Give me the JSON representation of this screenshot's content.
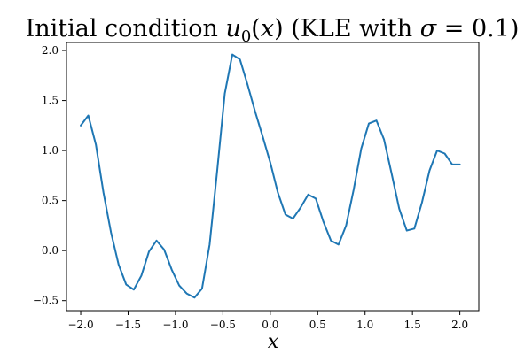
{
  "chart_data": {
    "type": "line",
    "title": {
      "prefix": "Initial condition ",
      "u": "u",
      "sub0": "0",
      "openParen": "(",
      "x": "x",
      "closeParen": ")",
      "middle": " (KLE with ",
      "sigma": "σ",
      "equals": " = ",
      "value": "0.1",
      "suffix": ")"
    },
    "xlabel": "x",
    "ylabel": "",
    "xlim": [
      -2.15,
      2.2
    ],
    "ylim": [
      -0.6,
      2.08
    ],
    "xticks": [
      -2.0,
      -1.5,
      -1.0,
      -0.5,
      0.0,
      0.5,
      1.0,
      1.5,
      2.0
    ],
    "xtick_labels": [
      "−2.0",
      "−1.5",
      "−1.0",
      "−0.5",
      "0.0",
      "0.5",
      "1.0",
      "1.5",
      "2.0"
    ],
    "yticks": [
      -0.5,
      0.0,
      0.5,
      1.0,
      1.5,
      2.0
    ],
    "ytick_labels": [
      "−0.5",
      "0.0",
      "0.5",
      "1.0",
      "1.5",
      "2.0"
    ],
    "grid": false,
    "series": [
      {
        "color": "#1f77b4",
        "x": [
          -2.0,
          -1.92,
          -1.84,
          -1.76,
          -1.68,
          -1.6,
          -1.52,
          -1.44,
          -1.36,
          -1.28,
          -1.2,
          -1.12,
          -1.04,
          -0.96,
          -0.88,
          -0.8,
          -0.72,
          -0.64,
          -0.56,
          -0.48,
          -0.4,
          -0.32,
          -0.24,
          -0.16,
          -0.08,
          0.0,
          0.08,
          0.16,
          0.24,
          0.32,
          0.4,
          0.48,
          0.56,
          0.64,
          0.72,
          0.8,
          0.88,
          0.96,
          1.04,
          1.12,
          1.2,
          1.28,
          1.36,
          1.44,
          1.52,
          1.6,
          1.68,
          1.76,
          1.84,
          1.92,
          2.0
        ],
        "y": [
          1.25,
          1.35,
          1.06,
          0.58,
          0.18,
          -0.14,
          -0.34,
          -0.39,
          -0.25,
          -0.01,
          0.1,
          0.01,
          -0.19,
          -0.35,
          -0.43,
          -0.47,
          -0.38,
          0.06,
          0.8,
          1.57,
          1.96,
          1.91,
          1.66,
          1.39,
          1.14,
          0.88,
          0.58,
          0.36,
          0.32,
          0.43,
          0.56,
          0.52,
          0.29,
          0.1,
          0.06,
          0.25,
          0.61,
          1.02,
          1.27,
          1.3,
          1.11,
          0.77,
          0.42,
          0.2,
          0.22,
          0.48,
          0.8,
          1.0,
          0.97,
          0.86,
          0.86
        ]
      }
    ]
  }
}
